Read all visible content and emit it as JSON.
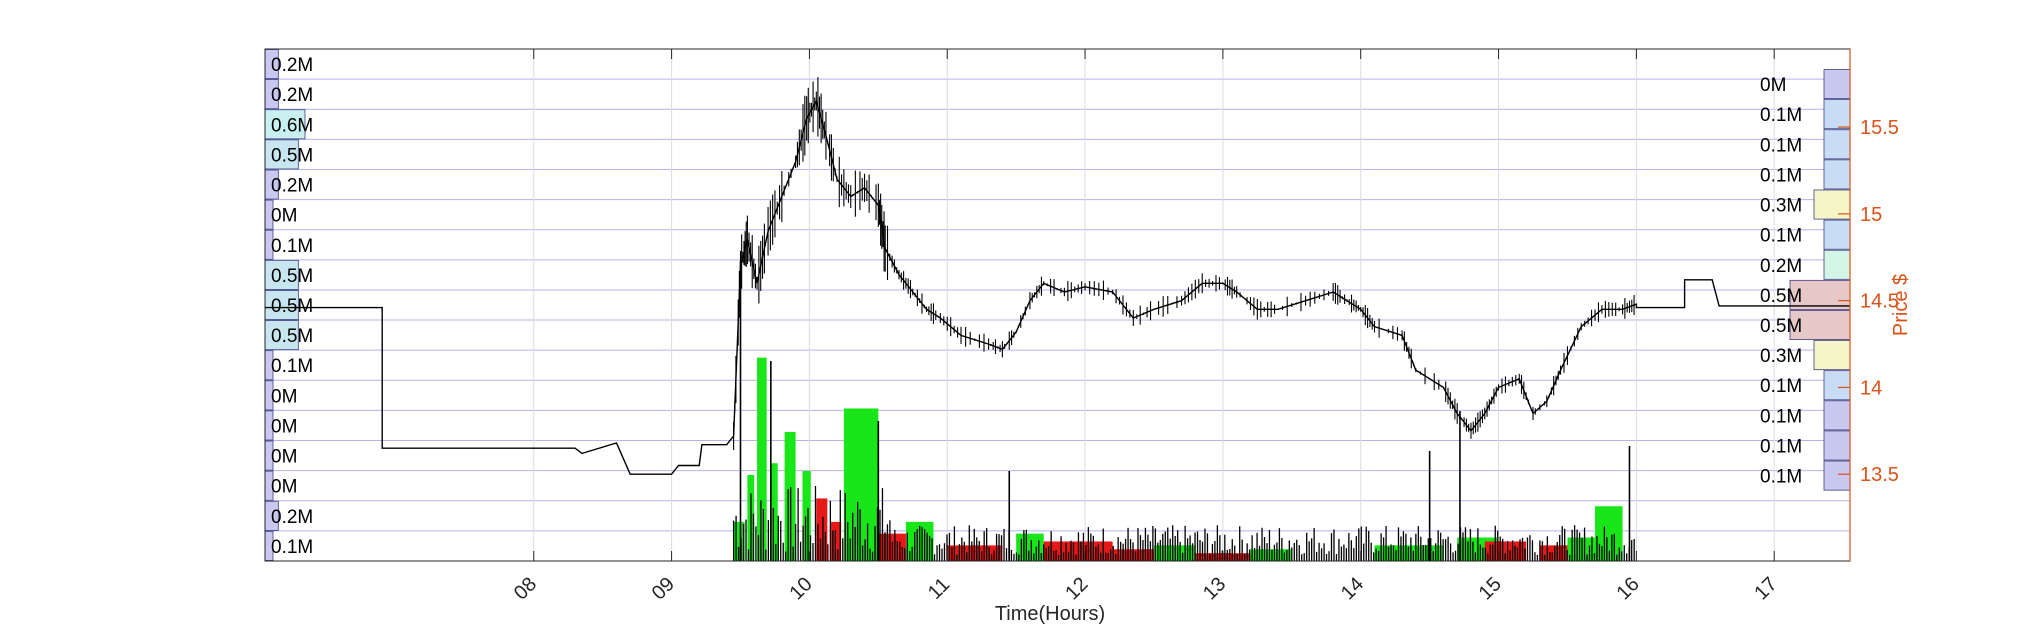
{
  "chart_data": {
    "type": "line",
    "xlabel": "Time(Hours)",
    "ylabel": "Price $",
    "x_ticks": [
      "08",
      "09",
      "10",
      "11",
      "12",
      "13",
      "14",
      "15",
      "16",
      "17"
    ],
    "x_tick_values": [
      8,
      9,
      10,
      11,
      12,
      13,
      14,
      15,
      16,
      17
    ],
    "xlim": [
      6.05,
      17.55
    ],
    "y_ticks": [
      "13.5",
      "14",
      "14.5",
      "15",
      "15.5"
    ],
    "y_tick_values": [
      13.5,
      14,
      14.5,
      15,
      15.5
    ],
    "ylim": [
      13.0,
      15.95
    ],
    "grid": true,
    "colors": {
      "price": "#000000",
      "volume_up": "#19e619",
      "volume_down": "#e61919",
      "right_axis": "#d95319",
      "grid": "#b3b3f0",
      "axis": "#262626"
    },
    "price_series": {
      "name": "",
      "points": [
        [
          6.05,
          14.46
        ],
        [
          6.9,
          14.46
        ],
        [
          6.9,
          13.65
        ],
        [
          8.3,
          13.65
        ],
        [
          8.35,
          13.62
        ],
        [
          8.6,
          13.68
        ],
        [
          8.7,
          13.5
        ],
        [
          9.0,
          13.5
        ],
        [
          9.05,
          13.55
        ],
        [
          9.2,
          13.55
        ],
        [
          9.22,
          13.67
        ],
        [
          9.4,
          13.67
        ],
        [
          9.45,
          13.72
        ],
        [
          9.5,
          14.7
        ],
        [
          9.55,
          14.85
        ],
        [
          9.62,
          14.6
        ],
        [
          9.7,
          14.9
        ],
        [
          9.8,
          15.1
        ],
        [
          9.9,
          15.3
        ],
        [
          9.98,
          15.55
        ],
        [
          10.05,
          15.65
        ],
        [
          10.12,
          15.45
        ],
        [
          10.2,
          15.2
        ],
        [
          10.3,
          15.1
        ],
        [
          10.4,
          15.15
        ],
        [
          10.5,
          15.05
        ],
        [
          10.55,
          14.8
        ],
        [
          10.65,
          14.65
        ],
        [
          10.75,
          14.55
        ],
        [
          10.85,
          14.45
        ],
        [
          10.95,
          14.4
        ],
        [
          11.1,
          14.3
        ],
        [
          11.3,
          14.25
        ],
        [
          11.4,
          14.22
        ],
        [
          11.5,
          14.32
        ],
        [
          11.6,
          14.5
        ],
        [
          11.7,
          14.6
        ],
        [
          11.85,
          14.55
        ],
        [
          12.0,
          14.58
        ],
        [
          12.2,
          14.55
        ],
        [
          12.35,
          14.4
        ],
        [
          12.5,
          14.45
        ],
        [
          12.7,
          14.5
        ],
        [
          12.85,
          14.6
        ],
        [
          13.0,
          14.6
        ],
        [
          13.1,
          14.55
        ],
        [
          13.25,
          14.45
        ],
        [
          13.4,
          14.45
        ],
        [
          13.6,
          14.5
        ],
        [
          13.8,
          14.55
        ],
        [
          13.9,
          14.5
        ],
        [
          14.0,
          14.45
        ],
        [
          14.1,
          14.35
        ],
        [
          14.3,
          14.3
        ],
        [
          14.4,
          14.1
        ],
        [
          14.6,
          14.0
        ],
        [
          14.7,
          13.85
        ],
        [
          14.8,
          13.75
        ],
        [
          14.9,
          13.85
        ],
        [
          15.0,
          14.0
        ],
        [
          15.15,
          14.05
        ],
        [
          15.25,
          13.85
        ],
        [
          15.35,
          13.92
        ],
        [
          15.45,
          14.1
        ],
        [
          15.6,
          14.35
        ],
        [
          15.75,
          14.45
        ],
        [
          15.9,
          14.45
        ],
        [
          16.0,
          14.48
        ],
        [
          16.0,
          14.46
        ],
        [
          16.35,
          14.46
        ],
        [
          16.35,
          14.62
        ],
        [
          16.55,
          14.62
        ],
        [
          16.6,
          14.47
        ],
        [
          17.55,
          14.47
        ]
      ]
    },
    "volume_series": {
      "name": "",
      "ylim": [
        0,
        900000
      ],
      "up": [
        {
          "x": 9.45,
          "w": 0.08,
          "v": 100000
        },
        {
          "x": 9.55,
          "w": 0.05,
          "v": 220000
        },
        {
          "x": 9.62,
          "w": 0.07,
          "v": 520000
        },
        {
          "x": 9.72,
          "w": 0.05,
          "v": 250000
        },
        {
          "x": 9.82,
          "w": 0.08,
          "v": 330000
        },
        {
          "x": 9.95,
          "w": 0.06,
          "v": 230000
        },
        {
          "x": 10.25,
          "w": 0.25,
          "v": 390000
        },
        {
          "x": 10.7,
          "w": 0.2,
          "v": 100000
        },
        {
          "x": 11.5,
          "w": 0.2,
          "v": 70000
        },
        {
          "x": 12.5,
          "w": 0.3,
          "v": 40000
        },
        {
          "x": 13.2,
          "w": 0.3,
          "v": 30000
        },
        {
          "x": 14.1,
          "w": 0.5,
          "v": 40000
        },
        {
          "x": 14.7,
          "w": 0.3,
          "v": 60000
        },
        {
          "x": 15.5,
          "w": 0.3,
          "v": 60000
        },
        {
          "x": 15.7,
          "w": 0.2,
          "v": 140000
        }
      ],
      "down": [
        {
          "x": 10.05,
          "w": 0.08,
          "v": 160000
        },
        {
          "x": 10.15,
          "w": 0.08,
          "v": 100000
        },
        {
          "x": 10.5,
          "w": 0.2,
          "v": 70000
        },
        {
          "x": 11.0,
          "w": 0.4,
          "v": 40000
        },
        {
          "x": 11.7,
          "w": 0.5,
          "v": 50000
        },
        {
          "x": 12.2,
          "w": 0.3,
          "v": 30000
        },
        {
          "x": 12.8,
          "w": 0.4,
          "v": 20000
        },
        {
          "x": 14.9,
          "w": 0.3,
          "v": 50000
        },
        {
          "x": 15.3,
          "w": 0.2,
          "v": 40000
        }
      ]
    },
    "left_volume_profile": {
      "labels": [
        "0.2M",
        "0.2M",
        "0.6M",
        "0.5M",
        "0.2M",
        "0M",
        "0.1M",
        "0.5M",
        "0.5M",
        "0.5M",
        "0.1M",
        "0M",
        "0M",
        "0M",
        "0M",
        "0.2M",
        "0.1M"
      ],
      "values": [
        200000,
        200000,
        600000,
        500000,
        200000,
        0,
        100000,
        500000,
        500000,
        500000,
        100000,
        0,
        0,
        0,
        0,
        200000,
        100000
      ],
      "colors": [
        "#c8c8f0",
        "#c8c8f0",
        "#c8f0f0",
        "#c8e6f0",
        "#c8c8f0",
        "#c8c8f0",
        "#c8c8f0",
        "#c8e6f0",
        "#c8e6f0",
        "#c8e6f0",
        "#c8c8f0",
        "#c8c8f0",
        "#c8c8f0",
        "#c8c8f0",
        "#c8c8f0",
        "#c8c8f0",
        "#c8c8f0"
      ]
    },
    "right_volume_profile": {
      "labels": [
        "0M",
        "0.1M",
        "0.1M",
        "0.1M",
        "0.3M",
        "0.1M",
        "0.2M",
        "0.5M",
        "0.5M",
        "0.3M",
        "0.1M",
        "0.1M",
        "0.1M",
        "0.1M"
      ],
      "values": [
        0,
        100000,
        100000,
        100000,
        300000,
        100000,
        200000,
        500000,
        500000,
        300000,
        100000,
        100000,
        100000,
        100000
      ],
      "colors": [
        "#c8c8f0",
        "#c8dcf5",
        "#c8dcf5",
        "#c8dcf5",
        "#f5f5c8",
        "#c8dcf5",
        "#d2f5e6",
        "#e6c8c8",
        "#e6c8c8",
        "#f5f5c8",
        "#c8dcf5",
        "#c8c8f0",
        "#c8c8f0",
        "#c8c8f0"
      ]
    }
  }
}
